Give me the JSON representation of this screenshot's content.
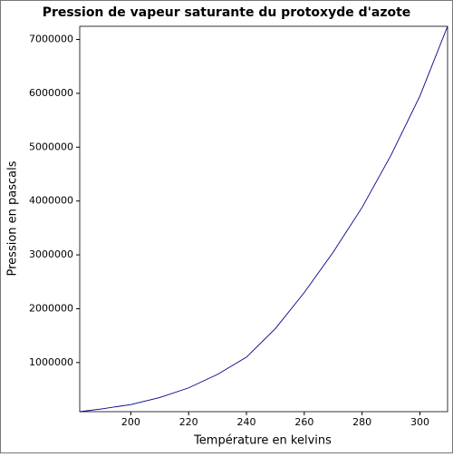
{
  "chart_data": {
    "type": "line",
    "title": "Pression de vapeur saturante du protoxyde d'azote",
    "x_label": "Température en kelvins",
    "y_label": "Pression en pascals",
    "x": [
      182.33,
      190,
      200,
      210,
      220,
      230,
      240,
      250,
      260,
      270,
      280,
      290,
      300,
      309.57
    ],
    "series": [
      {
        "color": "#00008b",
        "values": [
          87850,
          140000,
          220000,
          350000,
          530000,
          780000,
          1100000,
          1630000,
          2300000,
          3050000,
          3880000,
          4850000,
          5950000,
          7245000
        ]
      }
    ],
    "xlim": [
      182.33,
      309.57
    ],
    "ylim": [
      87850,
      7245000
    ],
    "xticks": [
      200,
      220,
      240,
      260,
      280,
      300
    ],
    "yticks": [
      1000000,
      2000000,
      3000000,
      4000000,
      5000000,
      6000000,
      7000000
    ]
  }
}
